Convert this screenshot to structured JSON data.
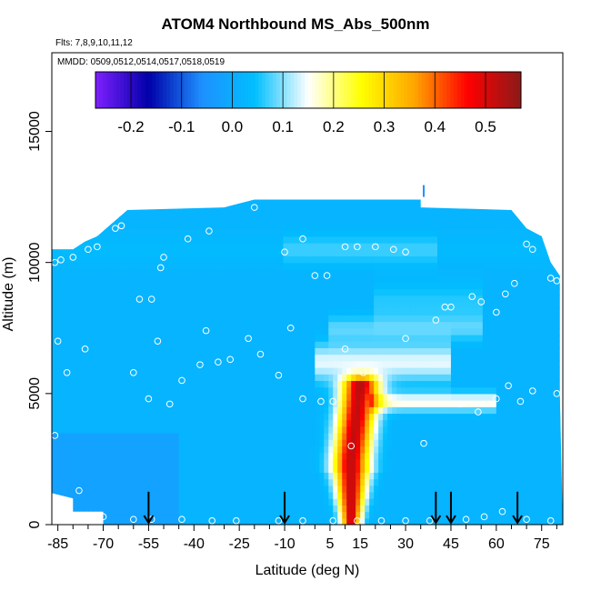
{
  "chart_data": {
    "type": "heatmap",
    "title": "ATOM4 Northbound MS_Abs_500nm",
    "subtitle_flights": "Flts: 7,8,9,10,11,12",
    "subtitle_dates": "MMDD: 0509,0512,0514,0517,0518,0519",
    "xlabel": "Latitude (deg N)",
    "ylabel": "Altitude (m)",
    "xlim": [
      -87,
      82
    ],
    "ylim": [
      0,
      18000
    ],
    "x_ticks": [
      -85,
      -70,
      -55,
      -40,
      -25,
      -10,
      5,
      15,
      30,
      45,
      60,
      75
    ],
    "y_ticks": [
      0,
      5000,
      10000,
      15000
    ],
    "colorbar": {
      "ticks": [
        -0.2,
        -0.1,
        0.0,
        0.1,
        0.2,
        0.3,
        0.4,
        0.5
      ],
      "tick_labels": [
        "-0.2",
        "-0.1",
        "0.0",
        "0.1",
        "0.2",
        "0.3",
        "0.4",
        "0.5"
      ],
      "range": [
        -0.27,
        0.57
      ],
      "colors": [
        "#7f1fff",
        "#0000a8",
        "#1e90ff",
        "#00bfff",
        "#ffffff",
        "#ffff00",
        "#ffa500",
        "#ff0000",
        "#8b1a1a"
      ]
    },
    "arrows_latitude": [
      -55,
      -10,
      40,
      45,
      67
    ],
    "background_value": 0.02,
    "enhancement_core": {
      "lat_center": 12,
      "alt_range": [
        0,
        5300
      ],
      "peak_value": 0.52
    },
    "flight_points": [
      {
        "x": -86,
        "y": 10000
      },
      {
        "x": -84,
        "y": 10100
      },
      {
        "x": -80,
        "y": 10200
      },
      {
        "x": -75,
        "y": 10500
      },
      {
        "x": -72,
        "y": 10600
      },
      {
        "x": -66,
        "y": 11300
      },
      {
        "x": -64,
        "y": 11400
      },
      {
        "x": -50,
        "y": 10200
      },
      {
        "x": -51,
        "y": 9800
      },
      {
        "x": -42,
        "y": 10900
      },
      {
        "x": -35,
        "y": 11200
      },
      {
        "x": -20,
        "y": 12100
      },
      {
        "x": -10,
        "y": 10400
      },
      {
        "x": -4,
        "y": 10900
      },
      {
        "x": 0,
        "y": 9500
      },
      {
        "x": 4,
        "y": 9500
      },
      {
        "x": 10,
        "y": 10600
      },
      {
        "x": 14,
        "y": 10600
      },
      {
        "x": 20,
        "y": 10600
      },
      {
        "x": 26,
        "y": 10500
      },
      {
        "x": 30,
        "y": 10400
      },
      {
        "x": 43,
        "y": 8300
      },
      {
        "x": 45,
        "y": 8300
      },
      {
        "x": 52,
        "y": 8700
      },
      {
        "x": 55,
        "y": 8500
      },
      {
        "x": 60,
        "y": 8100
      },
      {
        "x": 63,
        "y": 8800
      },
      {
        "x": 66,
        "y": 9200
      },
      {
        "x": 70,
        "y": 10700
      },
      {
        "x": 72,
        "y": 10500
      },
      {
        "x": 78,
        "y": 9400
      },
      {
        "x": 80,
        "y": 9300
      },
      {
        "x": -58,
        "y": 8600
      },
      {
        "x": -54,
        "y": 8600
      },
      {
        "x": -52,
        "y": 7000
      },
      {
        "x": -36,
        "y": 7400
      },
      {
        "x": -28,
        "y": 6300
      },
      {
        "x": -22,
        "y": 7100
      },
      {
        "x": -18,
        "y": 6500
      },
      {
        "x": -12,
        "y": 5700
      },
      {
        "x": -8,
        "y": 7500
      },
      {
        "x": -4,
        "y": 4800
      },
      {
        "x": 2,
        "y": 4700
      },
      {
        "x": 6,
        "y": 4700
      },
      {
        "x": 10,
        "y": 6700
      },
      {
        "x": 16,
        "y": 5800
      },
      {
        "x": 30,
        "y": 7100
      },
      {
        "x": 40,
        "y": 7800
      },
      {
        "x": 48,
        "y": 4600
      },
      {
        "x": 54,
        "y": 4300
      },
      {
        "x": 60,
        "y": 4800
      },
      {
        "x": 64,
        "y": 5300
      },
      {
        "x": 68,
        "y": 4700
      },
      {
        "x": 72,
        "y": 5100
      },
      {
        "x": 80,
        "y": 5000
      },
      {
        "x": -85,
        "y": 7000
      },
      {
        "x": -82,
        "y": 5800
      },
      {
        "x": -76,
        "y": 6700
      },
      {
        "x": -60,
        "y": 5800
      },
      {
        "x": -55,
        "y": 4800
      },
      {
        "x": -48,
        "y": 4600
      },
      {
        "x": -44,
        "y": 5500
      },
      {
        "x": -38,
        "y": 6100
      },
      {
        "x": -32,
        "y": 6200
      },
      {
        "x": -78,
        "y": 1300
      },
      {
        "x": -70,
        "y": 300
      },
      {
        "x": -60,
        "y": 200
      },
      {
        "x": -54,
        "y": 200
      },
      {
        "x": -44,
        "y": 200
      },
      {
        "x": -34,
        "y": 150
      },
      {
        "x": -26,
        "y": 150
      },
      {
        "x": -12,
        "y": 150
      },
      {
        "x": -4,
        "y": 150
      },
      {
        "x": 6,
        "y": 150
      },
      {
        "x": 14,
        "y": 150
      },
      {
        "x": 22,
        "y": 150
      },
      {
        "x": 30,
        "y": 150
      },
      {
        "x": 38,
        "y": 150
      },
      {
        "x": 50,
        "y": 200
      },
      {
        "x": 56,
        "y": 300
      },
      {
        "x": 62,
        "y": 500
      },
      {
        "x": 70,
        "y": 200
      },
      {
        "x": 78,
        "y": 150
      },
      {
        "x": 12,
        "y": 3000
      },
      {
        "x": 36,
        "y": 3100
      },
      {
        "x": -86,
        "y": 3400
      }
    ]
  }
}
